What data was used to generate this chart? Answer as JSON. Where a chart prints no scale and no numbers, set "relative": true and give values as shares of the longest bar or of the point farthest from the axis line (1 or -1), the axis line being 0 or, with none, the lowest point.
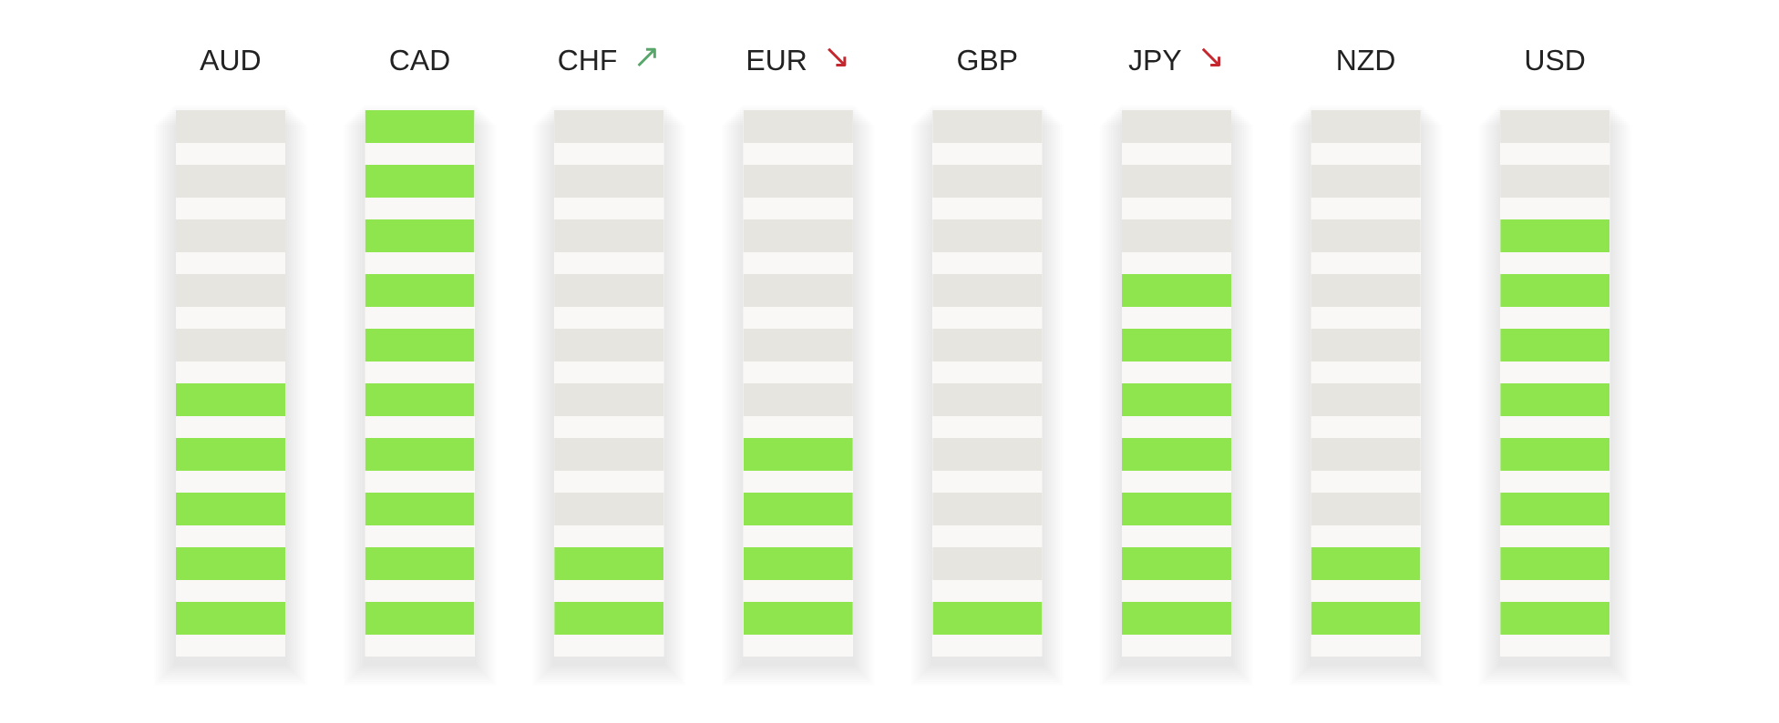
{
  "chart_data": {
    "type": "bar",
    "relative": true,
    "categories": [
      "AUD",
      "CAD",
      "CHF ↗",
      "EUR ↘",
      "GBP",
      "JPY ↘",
      "NZD",
      "USD"
    ],
    "values": [
      0.5,
      1,
      0.2,
      0.4,
      0.1,
      0.7,
      0.2,
      0.8
    ],
    "color": "#8ee54e"
  }
}
